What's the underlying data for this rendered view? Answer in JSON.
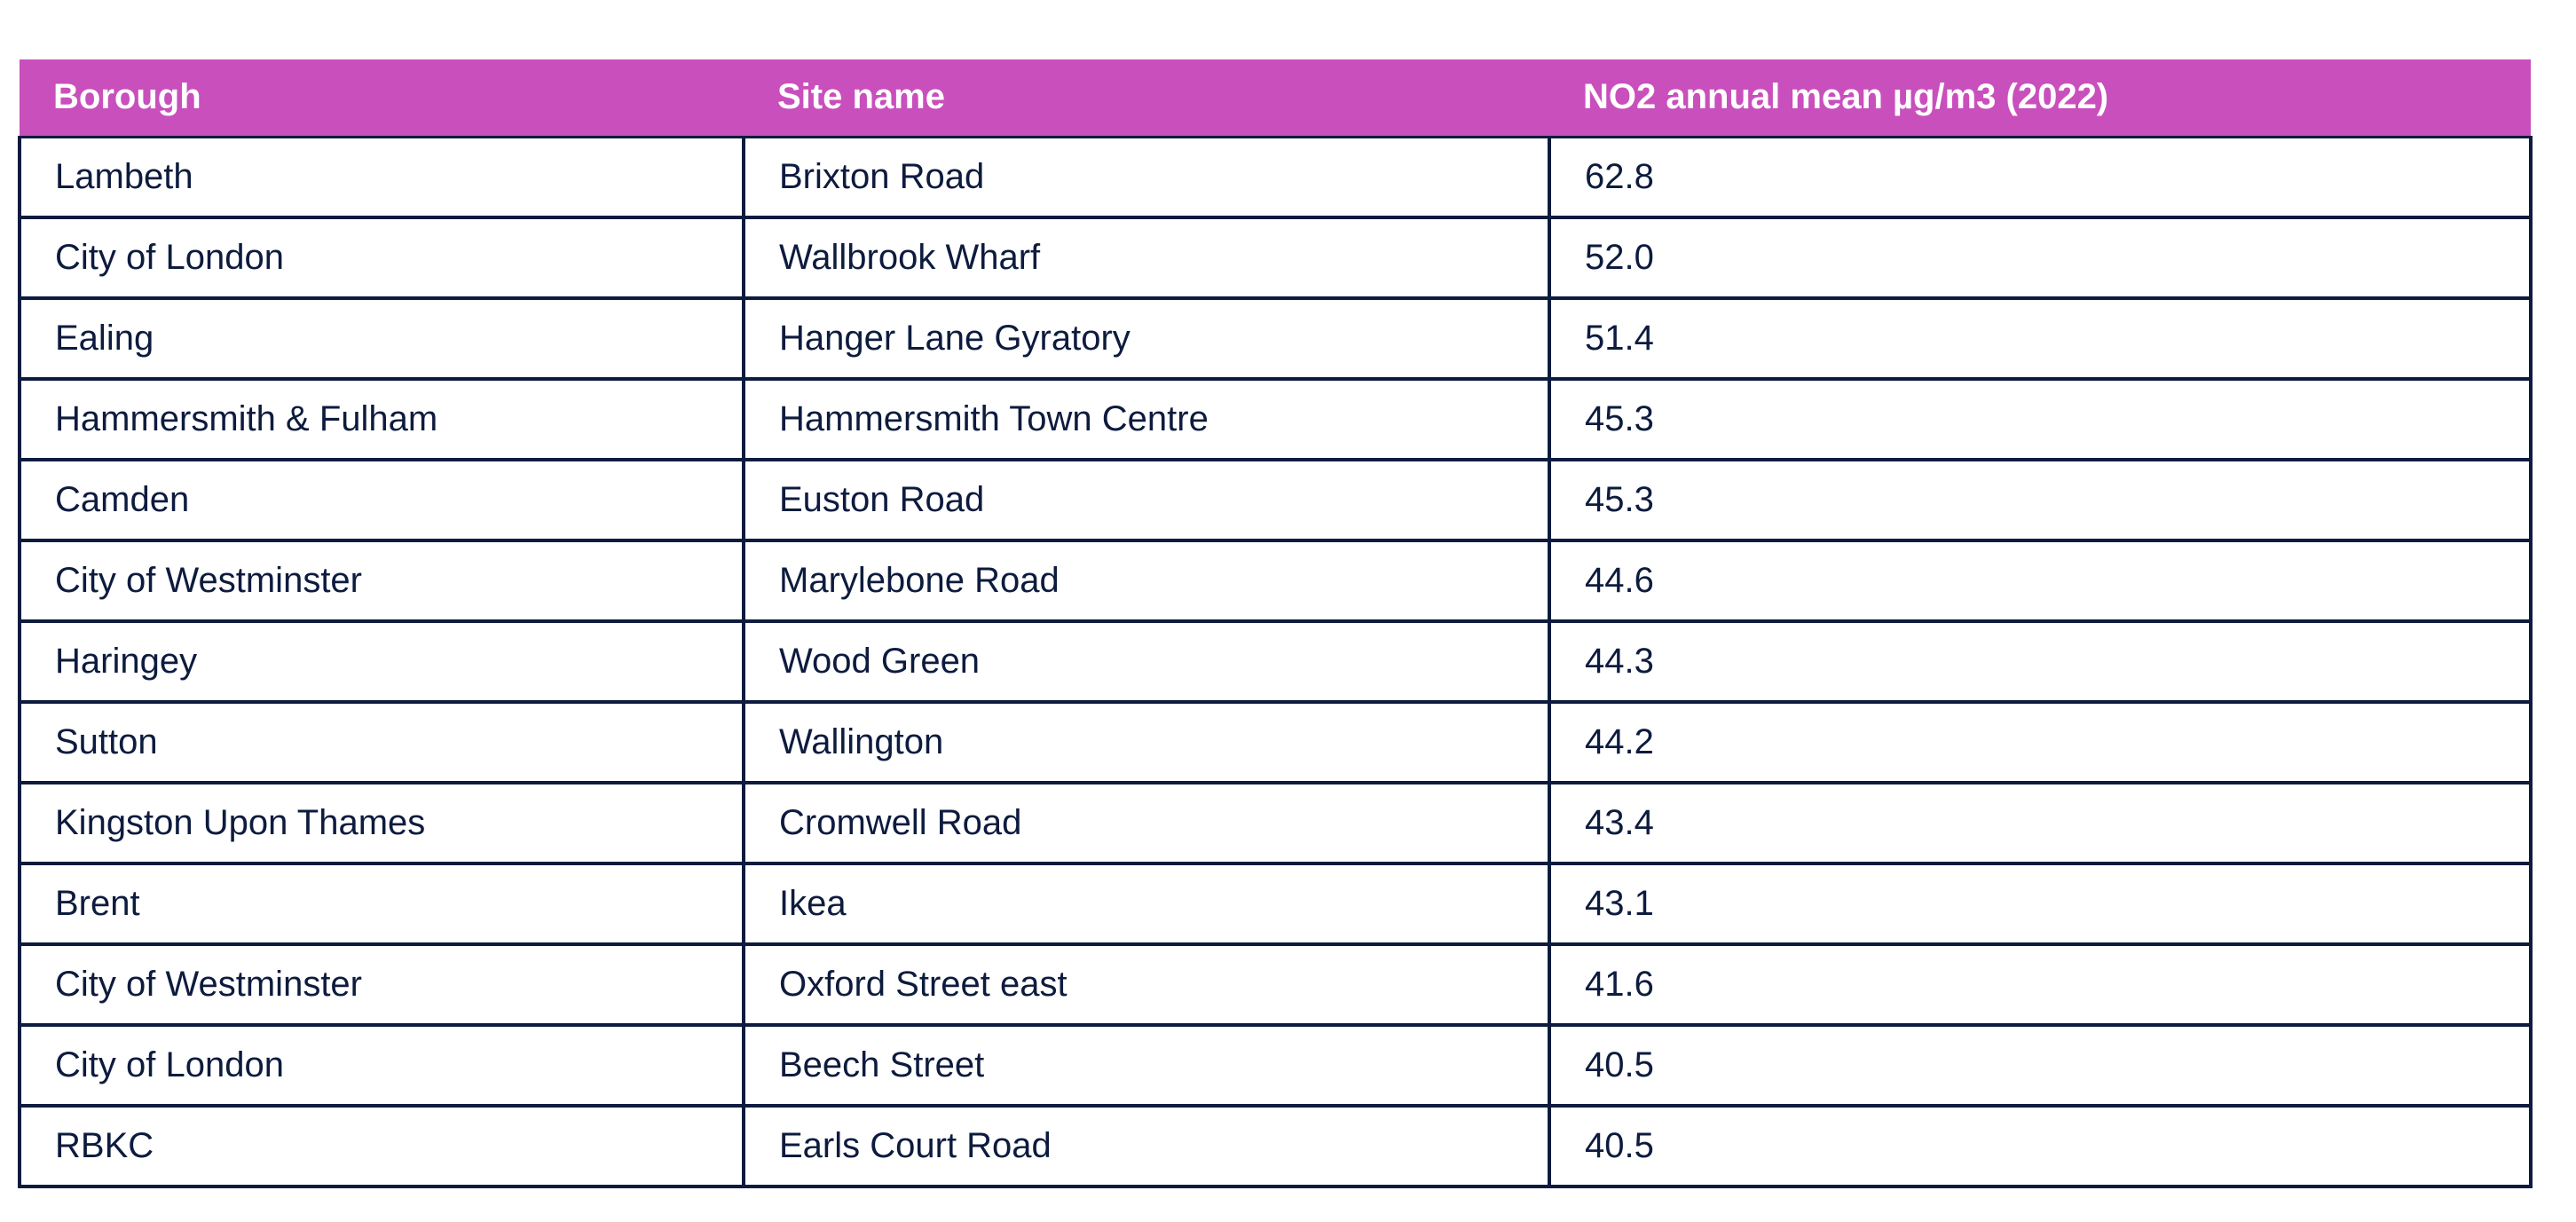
{
  "table": {
    "headers": [
      "Borough",
      "Site name",
      "NO2 annual mean µg/m3 (2022)"
    ],
    "rows": [
      [
        "Lambeth",
        "Brixton Road",
        "62.8"
      ],
      [
        "City of London",
        "Wallbrook Wharf",
        "52.0"
      ],
      [
        "Ealing",
        "Hanger Lane Gyratory",
        "51.4"
      ],
      [
        "Hammersmith & Fulham",
        "Hammersmith Town Centre",
        "45.3"
      ],
      [
        "Camden",
        "Euston Road",
        "45.3"
      ],
      [
        "City of Westminster",
        "Marylebone Road",
        "44.6"
      ],
      [
        "Haringey",
        "Wood Green",
        "44.3"
      ],
      [
        "Sutton",
        "Wallington",
        "44.2"
      ],
      [
        "Kingston Upon Thames",
        "Cromwell Road",
        "43.4"
      ],
      [
        "Brent",
        "Ikea",
        "43.1"
      ],
      [
        "City of Westminster",
        "Oxford Street east",
        "41.6"
      ],
      [
        "City of London",
        "Beech Street",
        "40.5"
      ],
      [
        "RBKC",
        "Earls Court Road",
        "40.5"
      ]
    ]
  },
  "colors": {
    "header_background": "#c94fbd",
    "header_text": "#ffffff",
    "body_text": "#0d1b3e",
    "border": "#0d1b3e"
  }
}
